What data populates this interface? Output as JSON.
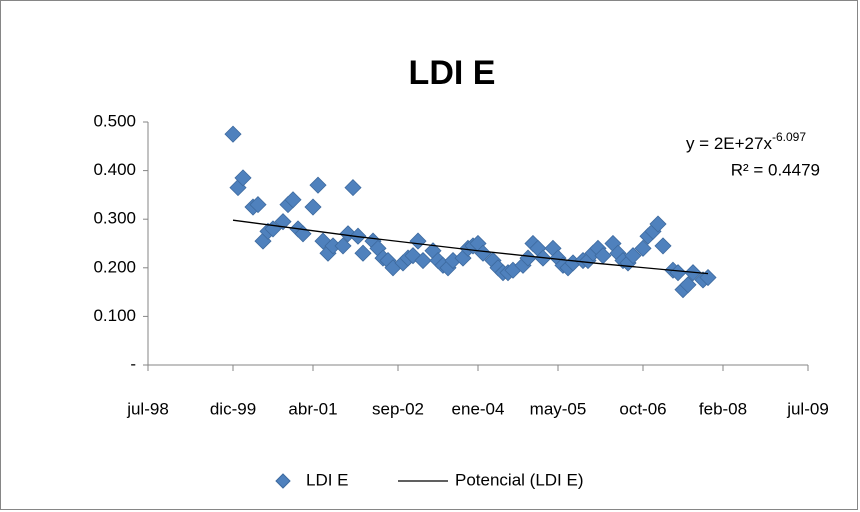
{
  "chart_data": {
    "type": "scatter",
    "title": "LDI E",
    "x": [
      "1999-12",
      "2000-01",
      "2000-02",
      "2000-04",
      "2000-05",
      "2000-06",
      "2000-07",
      "2000-08",
      "2000-10",
      "2000-11",
      "2000-12",
      "2001-01",
      "2001-02",
      "2001-04",
      "2001-05",
      "2001-06",
      "2001-07",
      "2001-08",
      "2001-10",
      "2001-11",
      "2001-12",
      "2002-01",
      "2002-02",
      "2002-04",
      "2002-05",
      "2002-06",
      "2002-07",
      "2002-08",
      "2002-10",
      "2002-11",
      "2002-12",
      "2003-01",
      "2003-02",
      "2003-04",
      "2003-05",
      "2003-06",
      "2003-07",
      "2003-08",
      "2003-10",
      "2003-11",
      "2003-12",
      "2004-01",
      "2004-02",
      "2004-04",
      "2004-05",
      "2004-06",
      "2004-07",
      "2004-08",
      "2004-10",
      "2004-11",
      "2004-12",
      "2005-01",
      "2005-02",
      "2005-04",
      "2005-05",
      "2005-06",
      "2005-07",
      "2005-08",
      "2005-10",
      "2005-11",
      "2005-12",
      "2006-01",
      "2006-02",
      "2006-04",
      "2006-05",
      "2006-06",
      "2006-07",
      "2006-08",
      "2006-10",
      "2006-11",
      "2006-12",
      "2007-01",
      "2007-02",
      "2007-04",
      "2007-05",
      "2007-06",
      "2007-07",
      "2007-08",
      "2007-10",
      "2007-11"
    ],
    "series": [
      {
        "name": "LDI E",
        "color": "#4f81bd",
        "values": [
          0.475,
          0.365,
          0.385,
          0.325,
          0.33,
          0.255,
          0.275,
          0.28,
          0.295,
          0.33,
          0.34,
          0.28,
          0.27,
          0.325,
          0.37,
          0.255,
          0.23,
          0.245,
          0.245,
          0.27,
          0.365,
          0.265,
          0.23,
          0.255,
          0.24,
          0.22,
          0.215,
          0.2,
          0.21,
          0.22,
          0.225,
          0.255,
          0.215,
          0.235,
          0.215,
          0.205,
          0.2,
          0.215,
          0.22,
          0.24,
          0.245,
          0.25,
          0.23,
          0.215,
          0.2,
          0.19,
          0.19,
          0.195,
          0.205,
          0.22,
          0.25,
          0.24,
          0.22,
          0.24,
          0.22,
          0.205,
          0.2,
          0.21,
          0.215,
          0.215,
          0.23,
          0.24,
          0.225,
          0.25,
          0.23,
          0.215,
          0.21,
          0.225,
          0.24,
          0.265,
          0.275,
          0.29,
          0.245,
          0.195,
          0.19,
          0.155,
          0.165,
          0.19,
          0.175,
          0.18
        ]
      }
    ],
    "trendline": {
      "name": "Potencial (LDI E)",
      "color": "#000000",
      "x": [
        "1999-12",
        "2002-01",
        "2004-01",
        "2006-01",
        "2007-11"
      ],
      "values": [
        0.298,
        0.264,
        0.235,
        0.209,
        0.188
      ]
    },
    "equation": "y = 2E+27x",
    "equation_exponent": "-6.097",
    "r_squared": "R² = 0.4479",
    "xlim": [
      "1998-07",
      "2009-07"
    ],
    "xticks": [
      {
        "value": "1998-07",
        "label": "jul-98"
      },
      {
        "value": "1999-12",
        "label": "dic-99"
      },
      {
        "value": "2001-04",
        "label": "abr-01"
      },
      {
        "value": "2002-09",
        "label": "sep-02"
      },
      {
        "value": "2004-01",
        "label": "ene-04"
      },
      {
        "value": "2005-05",
        "label": "may-05"
      },
      {
        "value": "2006-10",
        "label": "oct-06"
      },
      {
        "value": "2008-02",
        "label": "feb-08"
      },
      {
        "value": "2009-07",
        "label": "jul-09"
      }
    ],
    "ylim": [
      0,
      0.5
    ],
    "yticks": [
      {
        "value": 0,
        "label": "-"
      },
      {
        "value": 0.1,
        "label": "0.100"
      },
      {
        "value": 0.2,
        "label": "0.200"
      },
      {
        "value": 0.3,
        "label": "0.300"
      },
      {
        "value": 0.4,
        "label": "0.400"
      },
      {
        "value": 0.5,
        "label": "0.500"
      }
    ],
    "grid": false,
    "legend": "bottom"
  }
}
